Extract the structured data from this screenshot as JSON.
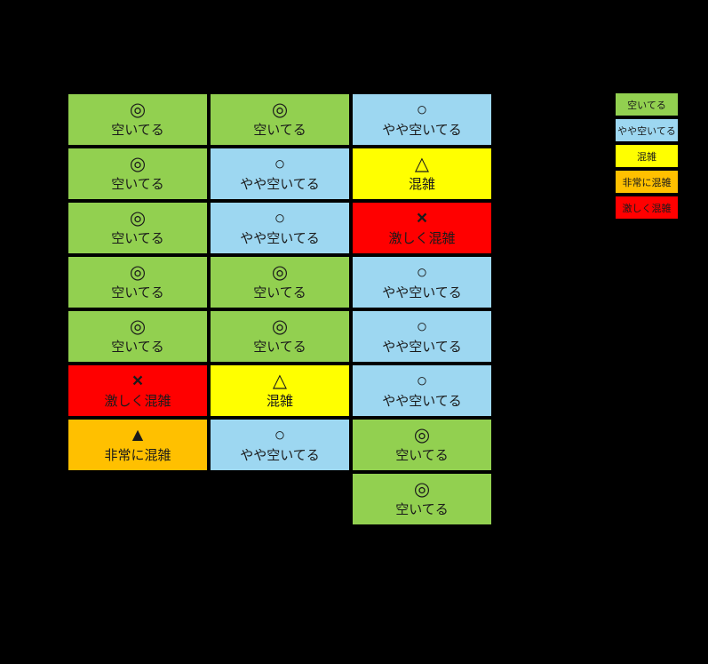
{
  "colors": {
    "vacant": "#92D050",
    "slightly_vacant": "#9DD7F1",
    "crowded": "#FFFF00",
    "very_crowded": "#FFC000",
    "extremely_crowded": "#FF0000",
    "background": "#000000"
  },
  "chart_data": {
    "type": "table",
    "layout": {
      "columns": 3,
      "rows": 8,
      "legend_position": "top-right",
      "background": "#000000"
    },
    "rows": [
      [
        {
          "symbol": "◎",
          "label": "空いてる",
          "level": "vacant",
          "color": "#92D050"
        },
        {
          "symbol": "◎",
          "label": "空いてる",
          "level": "vacant",
          "color": "#92D050"
        },
        {
          "symbol": "○",
          "label": "やや空いてる",
          "level": "slightly_vacant",
          "color": "#9DD7F1"
        }
      ],
      [
        {
          "symbol": "◎",
          "label": "空いてる",
          "level": "vacant",
          "color": "#92D050"
        },
        {
          "symbol": "○",
          "label": "やや空いてる",
          "level": "slightly_vacant",
          "color": "#9DD7F1"
        },
        {
          "symbol": "△",
          "label": "混雑",
          "level": "crowded",
          "color": "#FFFF00"
        }
      ],
      [
        {
          "symbol": "◎",
          "label": "空いてる",
          "level": "vacant",
          "color": "#92D050"
        },
        {
          "symbol": "○",
          "label": "やや空いてる",
          "level": "slightly_vacant",
          "color": "#9DD7F1"
        },
        {
          "symbol": "×",
          "label": "激しく混雑",
          "level": "extremely_crowded",
          "color": "#FF0000"
        }
      ],
      [
        {
          "symbol": "◎",
          "label": "空いてる",
          "level": "vacant",
          "color": "#92D050"
        },
        {
          "symbol": "◎",
          "label": "空いてる",
          "level": "vacant",
          "color": "#92D050"
        },
        {
          "symbol": "○",
          "label": "やや空いてる",
          "level": "slightly_vacant",
          "color": "#9DD7F1"
        }
      ],
      [
        {
          "symbol": "◎",
          "label": "空いてる",
          "level": "vacant",
          "color": "#92D050"
        },
        {
          "symbol": "◎",
          "label": "空いてる",
          "level": "vacant",
          "color": "#92D050"
        },
        {
          "symbol": "○",
          "label": "やや空いてる",
          "level": "slightly_vacant",
          "color": "#9DD7F1"
        }
      ],
      [
        {
          "symbol": "×",
          "label": "激しく混雑",
          "level": "extremely_crowded",
          "color": "#FF0000"
        },
        {
          "symbol": "△",
          "label": "混雑",
          "level": "crowded",
          "color": "#FFFF00"
        },
        {
          "symbol": "○",
          "label": "やや空いてる",
          "level": "slightly_vacant",
          "color": "#9DD7F1"
        }
      ],
      [
        {
          "symbol": "▲",
          "label": "非常に混雑",
          "level": "very_crowded",
          "color": "#FFC000"
        },
        {
          "symbol": "○",
          "label": "やや空いてる",
          "level": "slightly_vacant",
          "color": "#9DD7F1"
        },
        {
          "symbol": "◎",
          "label": "空いてる",
          "level": "vacant",
          "color": "#92D050"
        }
      ],
      [
        {
          "symbol": "",
          "label": "",
          "level": "none",
          "color": ""
        },
        {
          "symbol": "",
          "label": "",
          "level": "none",
          "color": ""
        },
        {
          "symbol": "◎",
          "label": "空いてる",
          "level": "vacant",
          "color": "#92D050"
        }
      ]
    ],
    "legend": [
      {
        "label": "空いてる",
        "color": "#92D050"
      },
      {
        "label": "やや空いてる",
        "color": "#9DD7F1"
      },
      {
        "label": "混雑",
        "color": "#FFFF00"
      },
      {
        "label": "非常に混雑",
        "color": "#FFC000"
      },
      {
        "label": "激しく混雑",
        "color": "#FF0000"
      }
    ]
  }
}
